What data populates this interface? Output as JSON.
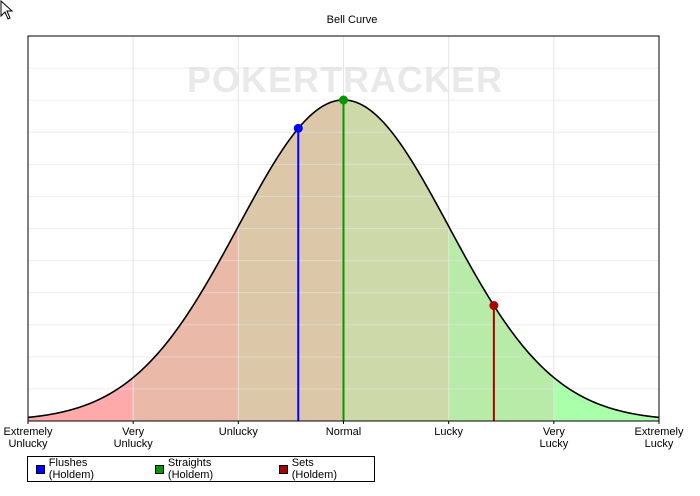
{
  "chart_data": {
    "type": "area",
    "title": "Bell Curve",
    "watermark": "POKERTRACKER",
    "x_categories": [
      "Extremely\nUnlucky",
      "Very\nUnlucky",
      "Unlucky",
      "Normal",
      "Lucky",
      "Very\nLucky",
      "Extremely\nLucky"
    ],
    "x_positions": [
      -3,
      -2,
      -1,
      0,
      1,
      2,
      3
    ],
    "xlim": [
      -3,
      3
    ],
    "ylim": [
      0,
      1.0
    ],
    "curve": "standard normal density (normalized, peak = 1.0)",
    "grid": true,
    "legend_position": "bottom-left",
    "background_bands": [
      {
        "from": -3,
        "to": -2,
        "color": "#ffaaaa"
      },
      {
        "from": -2,
        "to": -1,
        "color": "#ebb9a8"
      },
      {
        "from": -1,
        "to": 0,
        "color": "#dcc8a8"
      },
      {
        "from": 0,
        "to": 1,
        "color": "#cdd9a8"
      },
      {
        "from": 1,
        "to": 2,
        "color": "#b9eba8"
      },
      {
        "from": 2,
        "to": 3,
        "color": "#aaffaa"
      }
    ],
    "series": [
      {
        "name": "Flushes (Holdem)",
        "color": "#0000ff",
        "x": -0.43
      },
      {
        "name": "Straights (Holdem)",
        "color": "#009900",
        "x": 0.0
      },
      {
        "name": "Sets (Holdem)",
        "color": "#aa0000",
        "x": 1.43
      }
    ]
  }
}
